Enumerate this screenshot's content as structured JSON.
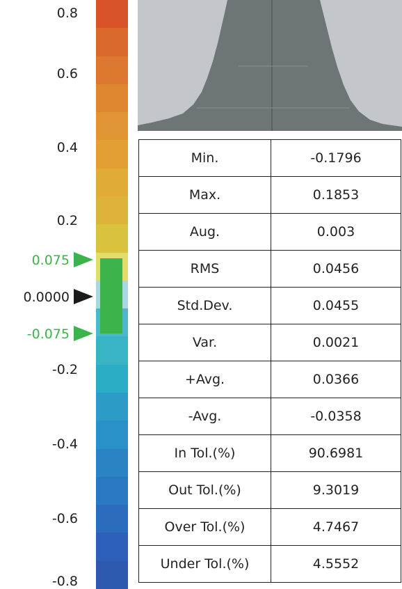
{
  "chart_data": [
    {
      "type": "heatmap",
      "title": "",
      "scale": {
        "tick_labels": [
          "0.8",
          "0.6",
          "0.4",
          "0.2",
          "-0.2",
          "-0.4",
          "-0.6",
          "-0.8"
        ],
        "ylim": [
          -0.8,
          0.8
        ],
        "bands": [
          "#d8522a",
          "#da6a2c",
          "#dc7830",
          "#de8630",
          "#e09433",
          "#e2a034",
          "#e0ac36",
          "#ddb33a",
          "#d8c23e",
          "#e2dc68",
          "#a8d8e2",
          "#4cb8cc",
          "#38b4c6",
          "#2aaec8",
          "#2c9cc6",
          "#2a90c8",
          "#2a84c4",
          "#2a78c0",
          "#2c6cbc",
          "#2c60b8",
          "#2c58ae"
        ]
      },
      "markers": {
        "upper_tol_label": "0.075",
        "zero_label": "0.0000",
        "lower_tol_label": "-0.075",
        "upper_tol": 0.075,
        "zero": 0.0,
        "lower_tol": -0.075,
        "tol_color": "#3cb44b",
        "zero_color": "#1a1a1a"
      }
    },
    {
      "type": "area",
      "title": "",
      "description_fill": "#6e7576",
      "background": "#c3c7cb"
    },
    {
      "type": "table",
      "rows": [
        {
          "label": "Min.",
          "value": "-0.1796"
        },
        {
          "label": "Max.",
          "value": "0.1853"
        },
        {
          "label": "Aug.",
          "value": "0.003"
        },
        {
          "label": "RMS",
          "value": "0.0456"
        },
        {
          "label": "Std.Dev.",
          "value": "0.0455"
        },
        {
          "label": "Var.",
          "value": "0.0021"
        },
        {
          "label": "+Avg.",
          "value": "0.0366"
        },
        {
          "label": "-Avg.",
          "value": "-0.0358"
        },
        {
          "label": "In Tol.(%)",
          "value": "90.6981"
        },
        {
          "label": "Out Tol.(%)",
          "value": "9.3019"
        },
        {
          "label": "Over Tol.(%)",
          "value": "4.7467"
        },
        {
          "label": "Under Tol.(%)",
          "value": "4.5552"
        }
      ]
    }
  ]
}
